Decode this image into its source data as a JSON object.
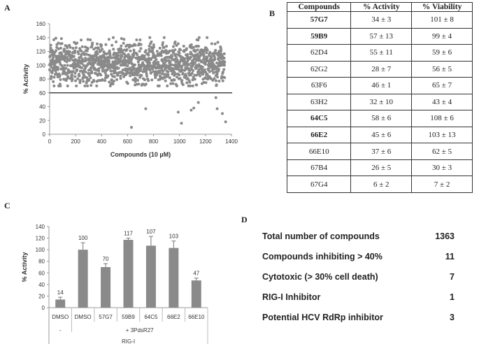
{
  "panel_labels": {
    "a": "A",
    "b": "B",
    "c": "C",
    "d": "D"
  },
  "chart_data": [
    {
      "type": "scatter",
      "xlabel": "Compounds (10 µM)",
      "ylabel": "% Activity",
      "xlim": [
        0,
        1400
      ],
      "ylim": [
        0,
        160
      ],
      "xticks": [
        "0",
        "200",
        "400",
        "600",
        "800",
        "1000",
        "1200",
        "1400"
      ],
      "yticks": [
        "0",
        "20",
        "40",
        "60",
        "80",
        "100",
        "120",
        "140",
        "160"
      ],
      "threshold_line": 60,
      "n_points": 1363,
      "bulk_range": [
        70,
        140
      ],
      "bulk_center": 102,
      "outliers": [
        {
          "x": 630,
          "y": 10
        },
        {
          "x": 740,
          "y": 37
        },
        {
          "x": 990,
          "y": 32
        },
        {
          "x": 1015,
          "y": 16
        },
        {
          "x": 1090,
          "y": 35
        },
        {
          "x": 1110,
          "y": 38
        },
        {
          "x": 1145,
          "y": 46
        },
        {
          "x": 1280,
          "y": 53
        },
        {
          "x": 1290,
          "y": 37
        },
        {
          "x": 1330,
          "y": 30
        },
        {
          "x": 1355,
          "y": 18
        }
      ],
      "color": "#8a8a8a"
    },
    {
      "type": "bar",
      "ylabel": "% Activity",
      "ylim": [
        0,
        140
      ],
      "yticks": [
        "0",
        "20",
        "40",
        "60",
        "80",
        "100",
        "120",
        "140"
      ],
      "categories": [
        "DMSO",
        "DMSO",
        "57G7",
        "59B9",
        "64C5",
        "66E2",
        "66E10"
      ],
      "values": [
        14,
        100,
        70,
        117,
        107,
        103,
        47
      ],
      "errors": [
        4,
        12,
        6,
        3,
        16,
        12,
        4
      ],
      "data_labels": [
        "14",
        "100",
        "70",
        "117",
        "107",
        "103",
        "47"
      ],
      "group_labels": {
        "minus": "-",
        "treatment": "+ 3PdsR27",
        "construct": "RIG-I"
      },
      "color": "#8a8a8a"
    }
  ],
  "table": {
    "headers": [
      "Compounds",
      "% Activity",
      "% Viability"
    ],
    "rows": [
      {
        "c": "57G7",
        "a": "34 ± 3",
        "v": "101 ± 8",
        "bold": true
      },
      {
        "c": "59B9",
        "a": "57 ± 13",
        "v": "99 ± 4",
        "bold": true
      },
      {
        "c": "62D4",
        "a": "55 ± 11",
        "v": "59 ± 6",
        "bold": false
      },
      {
        "c": "62G2",
        "a": "28 ± 7",
        "v": "56 ± 5",
        "bold": false
      },
      {
        "c": "63F6",
        "a": "46 ± 1",
        "v": "65 ± 7",
        "bold": false
      },
      {
        "c": "63H2",
        "a": "32 ± 10",
        "v": "43 ± 4",
        "bold": false
      },
      {
        "c": "64C5",
        "a": "58 ± 6",
        "v": "108 ± 6",
        "bold": true
      },
      {
        "c": "66E2",
        "a": "45 ± 6",
        "v": "103 ± 13",
        "bold": true
      },
      {
        "c": "66E10",
        "a": "37 ± 6",
        "v": "62 ± 5",
        "bold": false
      },
      {
        "c": "67B4",
        "a": "26 ± 5",
        "v": "30 ± 3",
        "bold": false
      },
      {
        "c": "67G4",
        "a": "6 ± 2",
        "v": "7 ± 2",
        "bold": false
      }
    ]
  },
  "summary": [
    {
      "label": "Total number of compounds",
      "value": "1363"
    },
    {
      "label": "Compounds inhibiting > 40%",
      "value": "11"
    },
    {
      "label": "Cytotoxic (> 30% cell death)",
      "value": "7"
    },
    {
      "label": "RIG-I Inhibitor",
      "value": "1"
    },
    {
      "label": "Potential HCV RdRp inhibitor",
      "value": "3"
    }
  ]
}
